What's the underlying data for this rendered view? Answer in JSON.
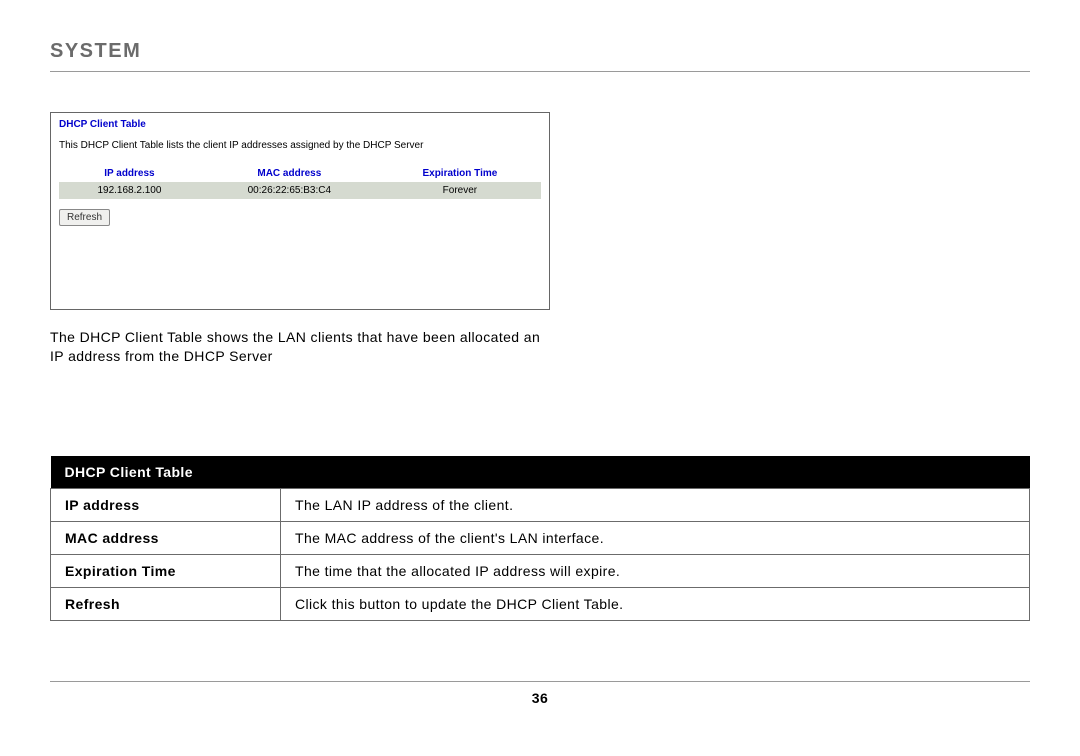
{
  "page": {
    "title": "SYSTEM",
    "number": "36"
  },
  "screenshot": {
    "title": "DHCP Client Table",
    "description": "This DHCP Client Table lists the client IP addresses assigned by the DHCP Server",
    "columns": [
      "IP address",
      "MAC address",
      "Expiration Time"
    ],
    "row": {
      "ip": "192.168.2.100",
      "mac": "00:26:22:65:B3:C4",
      "exp": "Forever"
    },
    "refresh_label": "Refresh"
  },
  "caption": "The DHCP Client Table shows the LAN clients that have been allocated an IP address from the DHCP Server",
  "ref_table": {
    "header": "DHCP Client Table",
    "rows": [
      {
        "term": "IP address",
        "desc": "The LAN IP address of the client."
      },
      {
        "term": "MAC address",
        "desc": "The MAC address of the client's LAN interface."
      },
      {
        "term": "Expiration Time",
        "desc": "The time that the allocated IP address will expire."
      },
      {
        "term": "Refresh",
        "desc": "Click this button to update the DHCP Client Table."
      }
    ]
  }
}
